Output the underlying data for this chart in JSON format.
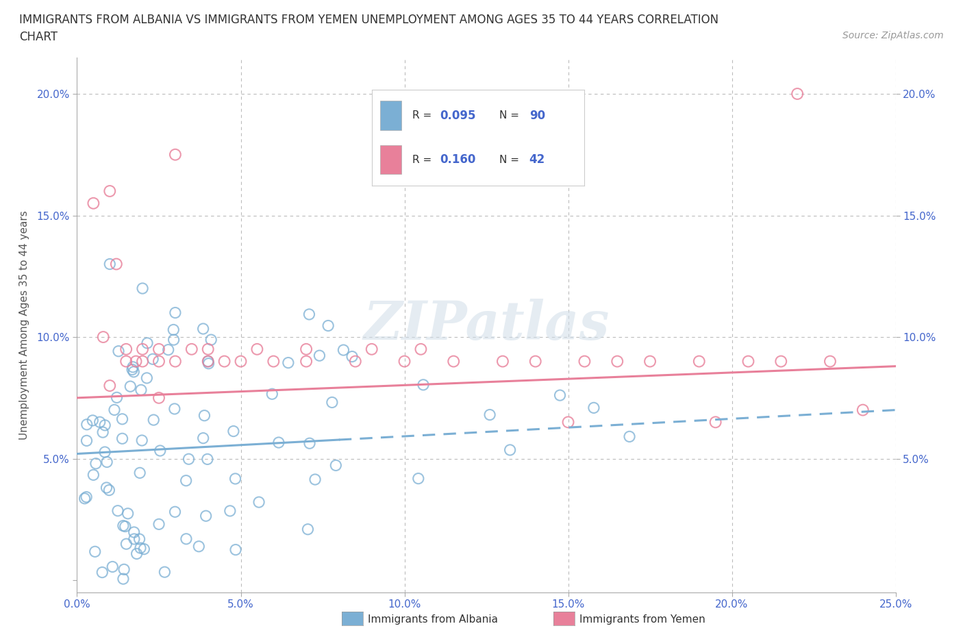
{
  "title_line1": "IMMIGRANTS FROM ALBANIA VS IMMIGRANTS FROM YEMEN UNEMPLOYMENT AMONG AGES 35 TO 44 YEARS CORRELATION",
  "title_line2": "CHART",
  "source_text": "Source: ZipAtlas.com",
  "ylabel": "Unemployment Among Ages 35 to 44 years",
  "xlim": [
    0.0,
    0.25
  ],
  "ylim": [
    -0.005,
    0.215
  ],
  "albania_color": "#7BAFD4",
  "yemen_color": "#E8809A",
  "albania_R": 0.095,
  "albania_N": 90,
  "yemen_R": 0.16,
  "yemen_N": 42,
  "watermark_text": "ZIPatlas",
  "legend_label_albania": "Immigrants from Albania",
  "legend_label_yemen": "Immigrants from Yemen",
  "background_color": "#ffffff",
  "grid_color": "#bbbbbb",
  "tick_color": "#4466cc",
  "title_color": "#333333",
  "source_color": "#999999",
  "albania_trend_intercept": 0.052,
  "albania_trend_slope": 0.072,
  "albania_trend_solid_end": 0.08,
  "yemen_trend_intercept": 0.075,
  "yemen_trend_slope": 0.052
}
